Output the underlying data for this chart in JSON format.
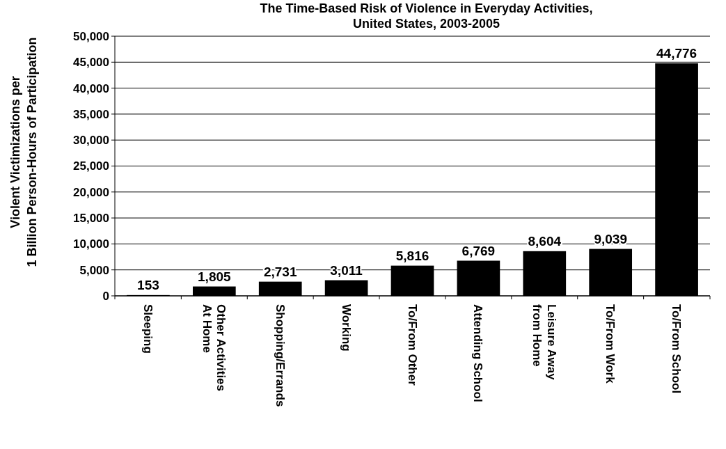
{
  "chart_data": {
    "type": "bar",
    "title": "The Time-Based Risk of Violence in Everyday Activities, United States, 2003-2005",
    "ylabel": "Violent Victimizations per 1 Billion Person-Hours of Participation",
    "categories": [
      "Sleeping",
      "Other Activities At Home",
      "Shopping/Errands",
      "Working",
      "To/From Other",
      "Attending School",
      "Leisure Away from Home",
      "To/From Work",
      "To/From School"
    ],
    "values": [
      153,
      1805,
      2731,
      3011,
      5816,
      6769,
      8604,
      9039,
      44776
    ],
    "value_labels": [
      "153",
      "1,805",
      "2,731",
      "3,011",
      "5,816",
      "6,769",
      "8,604",
      "9,039",
      "44,776"
    ],
    "color": "#000000",
    "ylim": [
      0,
      50000
    ],
    "yticks": [
      {
        "value": 0,
        "label": "0"
      },
      {
        "value": 5000,
        "label": "5,000"
      },
      {
        "value": 10000,
        "label": "10,000"
      },
      {
        "value": 15000,
        "label": "15,000"
      },
      {
        "value": 20000,
        "label": "20,000"
      },
      {
        "value": 25000,
        "label": "25,000"
      },
      {
        "value": 30000,
        "label": "30,000"
      },
      {
        "value": 35000,
        "label": "35,000"
      },
      {
        "value": 40000,
        "label": "40,000"
      },
      {
        "value": 45000,
        "label": "45,000"
      },
      {
        "value": 50000,
        "label": "50,000"
      }
    ],
    "grid": "y"
  }
}
